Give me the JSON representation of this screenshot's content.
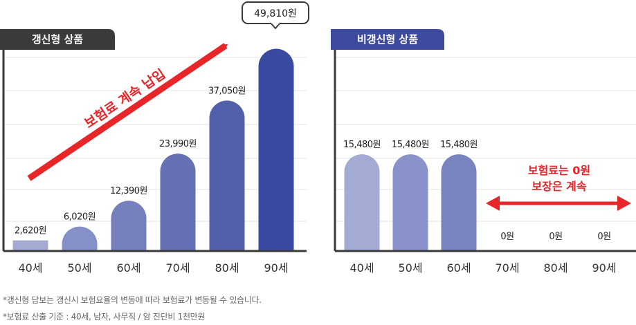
{
  "colors": {
    "accent_red": "#e8262a",
    "tag_dark": "#3b3b3b",
    "tag_blue": "#3d4a9d",
    "grid": "#e3e3e3",
    "axis": "#3a3a3a",
    "renewable_bars": [
      "#a3aad4",
      "#8690c8",
      "#7680bd",
      "#6670b5",
      "#5260ac",
      "#3a4aa0"
    ],
    "nonrenewable_bars": [
      "#a3aad4",
      "#8a93c9",
      "#7883bf"
    ]
  },
  "chart_data": [
    {
      "type": "bar",
      "title": "갱신형 상품",
      "categories": [
        "40세",
        "50세",
        "60세",
        "70세",
        "80세",
        "90세"
      ],
      "values": [
        2620,
        6020,
        12390,
        23990,
        37050,
        49810
      ],
      "value_labels": [
        "2,620원",
        "6,020원",
        "12,390원",
        "23,990원",
        "37,050원",
        "49,810원"
      ],
      "highlight_label": "49,810원",
      "annotation": "보험료 계속 납입",
      "ylim": [
        0,
        55000
      ],
      "grid": true
    },
    {
      "type": "bar",
      "title": "비갱신형 상품",
      "categories": [
        "40세",
        "50세",
        "60세",
        "70세",
        "80세",
        "90세"
      ],
      "values": [
        15480,
        15480,
        15480,
        0,
        0,
        0
      ],
      "value_labels": [
        "15,480원",
        "15,480원",
        "15,480원",
        "0원",
        "0원",
        "0원"
      ],
      "annotation": [
        "보험료는 0원",
        "보장은 계속"
      ],
      "ylim": [
        0,
        28000
      ],
      "grid": true
    }
  ],
  "footnotes": [
    "*갱신형 담보는 갱신시 보험요율의 변동에 따라 보험료가 변동될 수 있습니다.",
    "*보험료 산출 기준 : 40세, 남자, 사무직 / 암 진단비 1천만원"
  ]
}
